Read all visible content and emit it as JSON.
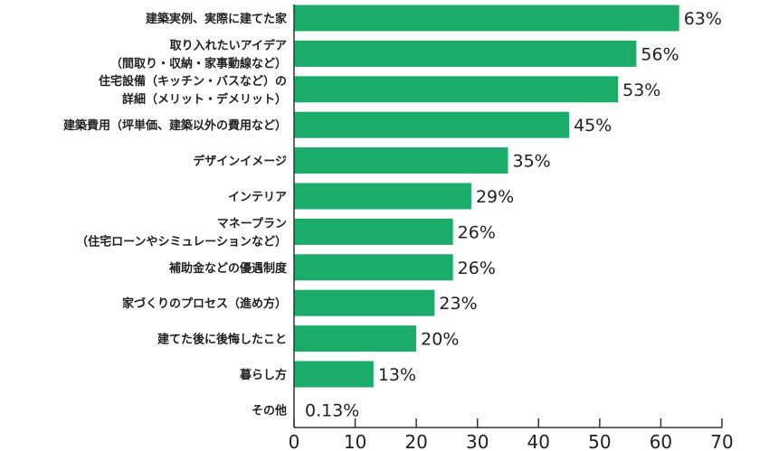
{
  "chart_data": {
    "type": "bar",
    "orientation": "horizontal",
    "categories": [
      [
        "建築実例、実際に建てた家"
      ],
      [
        "取り入れたいアイデア",
        "（間取り・収納・家事動線など）"
      ],
      [
        "住宅設備（キッチン・バスなど）の",
        "詳細（メリット・デメリット）"
      ],
      [
        "建築費用（坪単価、建築以外の費用など）"
      ],
      [
        "デザインイメージ"
      ],
      [
        "インテリア"
      ],
      [
        "マネープラン",
        "（住宅ローンやシミュレーションなど）"
      ],
      [
        "補助金などの優遇制度"
      ],
      [
        "家づくりのプロセス（進め方）"
      ],
      [
        "建てた後に後悔したこと"
      ],
      [
        "暮らし方"
      ],
      [
        "その他"
      ]
    ],
    "values": [
      63,
      56,
      53,
      45,
      35,
      29,
      26,
      26,
      23,
      20,
      13,
      0.13
    ],
    "value_labels": [
      "63%",
      "56%",
      "53%",
      "45%",
      "35%",
      "29%",
      "26%",
      "26%",
      "23%",
      "20%",
      "13%",
      "0.13%"
    ],
    "xlim": [
      0,
      70
    ],
    "xticks": [
      "0",
      "10",
      "20",
      "30",
      "40",
      "50",
      "60",
      "70"
    ],
    "bar_color": "#1aac68",
    "grid": false
  }
}
